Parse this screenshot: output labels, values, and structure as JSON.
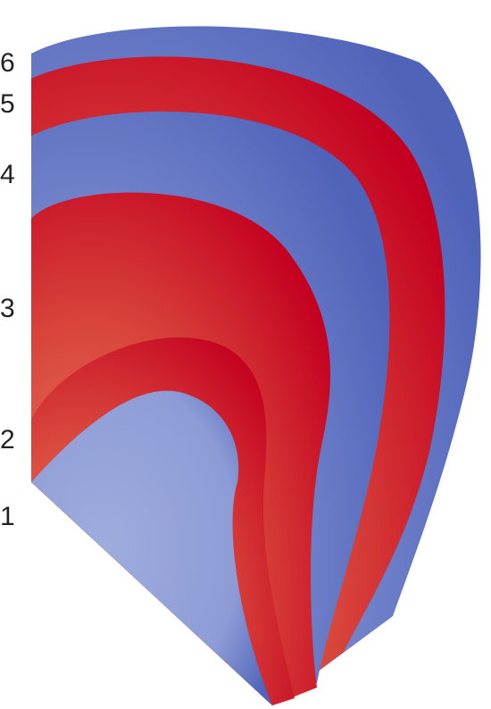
{
  "labels": [
    "1",
    "2",
    "3",
    "4",
    "5",
    "6"
  ]
}
